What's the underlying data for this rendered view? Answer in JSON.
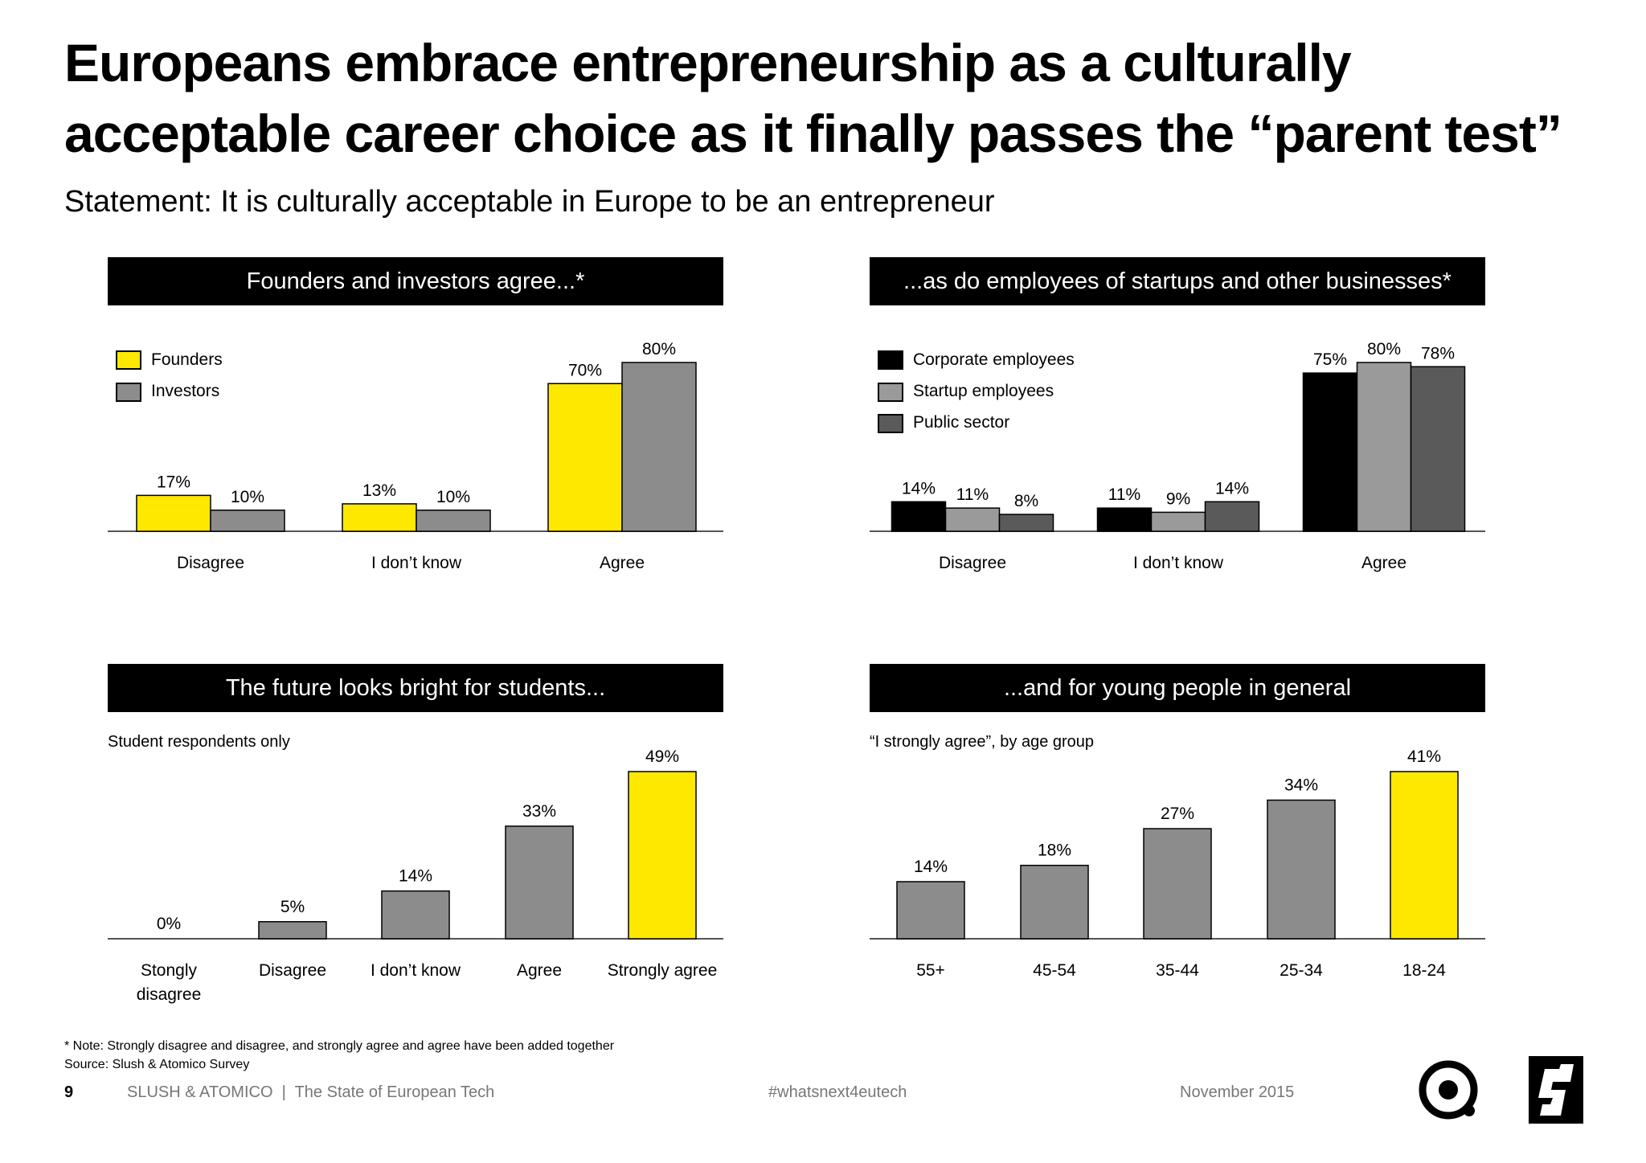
{
  "title": "Europeans embrace entrepreneurship as a culturally acceptable career choice as it finally passes the “parent test”",
  "subtitle": "Statement: It is culturally acceptable in Europe to be an entrepreneur",
  "colors": {
    "yellow": "#FFE800",
    "grey": "#8C8C8C",
    "light_grey": "#9A9A9A",
    "dark_grey": "#5A5A5A",
    "black": "#000000"
  },
  "panels": {
    "p1": {
      "banner": "Founders and investors agree...*"
    },
    "p2": {
      "banner": "...as do employees of startups and other businesses*"
    },
    "p3": {
      "banner": "The future looks bright for students...",
      "note": "Student respondents only"
    },
    "p4": {
      "banner": "...and for young people in general",
      "note": "“I strongly agree”, by age group"
    }
  },
  "chart_data": [
    {
      "type": "bar",
      "categories": [
        "Disagree",
        "I don’t know",
        "Agree"
      ],
      "series": [
        {
          "name": "Founders",
          "values": [
            17,
            13,
            70
          ],
          "color": "#FFE800"
        },
        {
          "name": "Investors",
          "values": [
            10,
            10,
            80
          ],
          "color": "#8C8C8C"
        }
      ],
      "unit": "%",
      "ylim": [
        0,
        80
      ],
      "legend": "top-left"
    },
    {
      "type": "bar",
      "categories": [
        "Disagree",
        "I don’t know",
        "Agree"
      ],
      "series": [
        {
          "name": "Corporate employees",
          "values": [
            14,
            11,
            75
          ],
          "color": "#000000"
        },
        {
          "name": "Startup employees",
          "values": [
            11,
            9,
            80
          ],
          "color": "#9A9A9A"
        },
        {
          "name": "Public sector",
          "values": [
            8,
            14,
            78
          ],
          "color": "#5A5A5A"
        }
      ],
      "unit": "%",
      "ylim": [
        0,
        80
      ],
      "legend": "top-left"
    },
    {
      "type": "bar",
      "categories": [
        "Stongly disagree",
        "Disagree",
        "I don’t know",
        "Agree",
        "Strongly agree"
      ],
      "values": [
        0,
        5,
        14,
        33,
        49
      ],
      "colors": [
        "#8C8C8C",
        "#8C8C8C",
        "#8C8C8C",
        "#8C8C8C",
        "#FFE800"
      ],
      "unit": "%",
      "ylim": [
        0,
        49
      ]
    },
    {
      "type": "bar",
      "categories": [
        "55+",
        "45-54",
        "35-44",
        "25-34",
        "18-24"
      ],
      "values": [
        14,
        18,
        27,
        34,
        41
      ],
      "colors": [
        "#8C8C8C",
        "#8C8C8C",
        "#8C8C8C",
        "#8C8C8C",
        "#FFE800"
      ],
      "unit": "%",
      "ylim": [
        0,
        41
      ]
    }
  ],
  "footnote": {
    "line1": "* Note: Strongly disagree and disagree, and strongly agree and agree have been added together",
    "line2": "Source: Slush & Atomico Survey"
  },
  "footer": {
    "page_number": "9",
    "left": "SLUSH & ATOMICO  |  The State of European Tech",
    "hashtag": "#whatsnext4eutech",
    "date": "November 2015"
  },
  "logos": [
    "atomico-logo",
    "slush-logo"
  ]
}
